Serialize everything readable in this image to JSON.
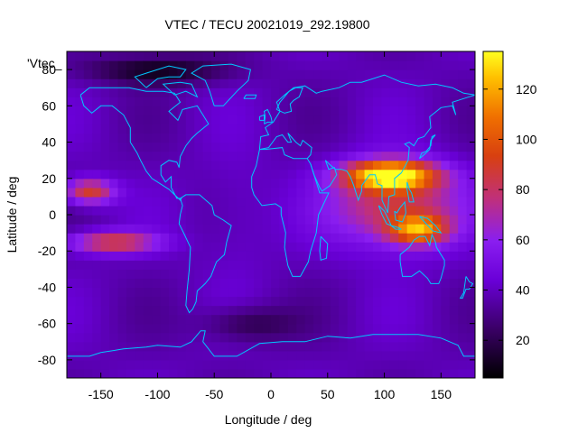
{
  "chart_data": {
    "type": "heatmap",
    "title": "VTEC / TECU 20021019_292.19800",
    "xlabel": "Longitude / deg",
    "ylabel": "Latitude / deg",
    "legend_label": "'Vtec_",
    "xlim": [
      -180,
      180
    ],
    "ylim": [
      -90,
      90
    ],
    "xticks": [
      -150,
      -100,
      -50,
      0,
      50,
      100,
      150
    ],
    "yticks": [
      -80,
      -60,
      -40,
      -20,
      0,
      20,
      40,
      60,
      80
    ],
    "colorbar": {
      "range": [
        5,
        135
      ],
      "ticks": [
        20,
        40,
        60,
        80,
        100,
        120
      ]
    },
    "grid": false,
    "features": [
      {
        "name": "eastern-equatorial-anomaly-peak",
        "lon": 105,
        "lat": 22,
        "value": 128,
        "spread_lon": 40,
        "spread_lat": 8
      },
      {
        "name": "eastern-main-bulge",
        "lon": 110,
        "lat": 5,
        "value": 88,
        "spread_lon": 55,
        "spread_lat": 22
      },
      {
        "name": "eastern-southern-crest",
        "lon": 130,
        "lat": -8,
        "value": 100,
        "spread_lon": 25,
        "spread_lat": 8
      },
      {
        "name": "pacific-northern-crest",
        "lon": -160,
        "lat": 13,
        "value": 92,
        "spread_lon": 22,
        "spread_lat": 7
      },
      {
        "name": "pacific-southern-crest",
        "lon": -140,
        "lat": -15,
        "value": 88,
        "spread_lon": 40,
        "spread_lat": 6
      },
      {
        "name": "atlantic-region",
        "lon": -30,
        "lat": 0,
        "value": 45,
        "spread_lon": 30,
        "spread_lat": 30
      },
      {
        "name": "polar-minimum-north",
        "lon": -100,
        "lat": 80,
        "value": 10,
        "spread_lon": 60,
        "spread_lat": 8
      },
      {
        "name": "south-minimum",
        "lon": -20,
        "lat": -60,
        "value": 18,
        "spread_lon": 40,
        "spread_lat": 10
      }
    ],
    "base_value": 38
  }
}
